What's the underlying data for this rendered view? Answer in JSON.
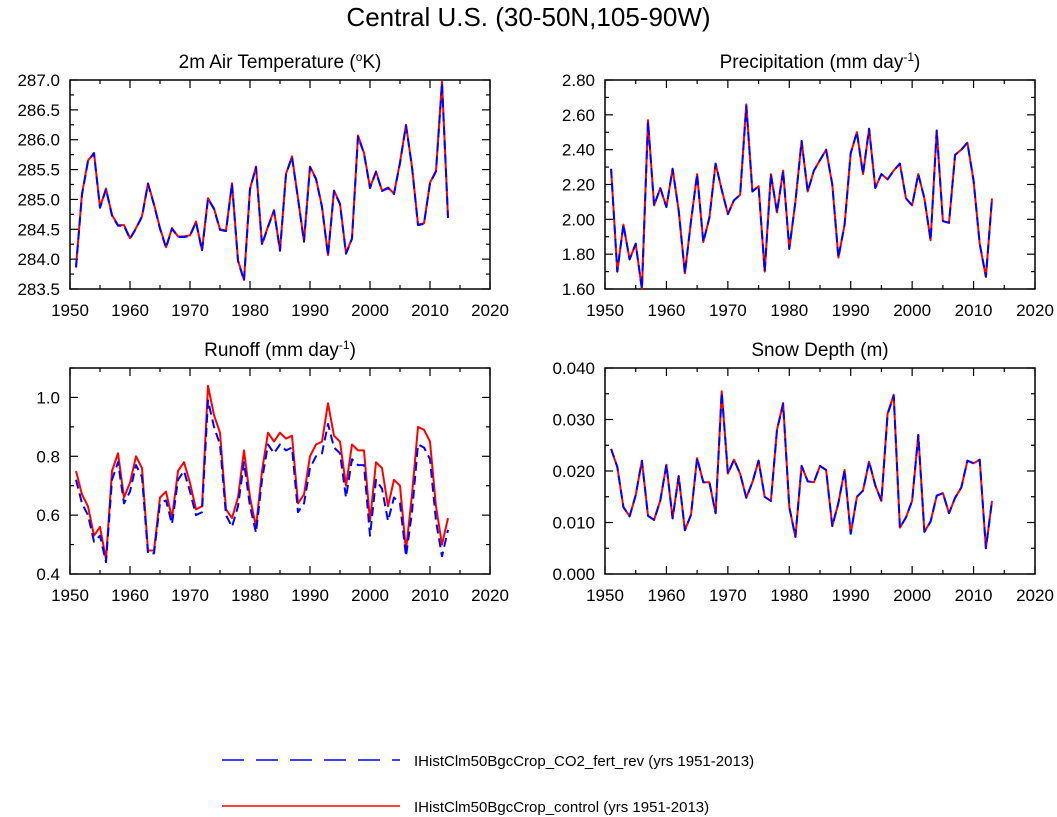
{
  "figure": {
    "title": "Central U.S. (30-50N,105-90W)"
  },
  "colors": {
    "control": "#ff0000",
    "co2": "#0000ff",
    "axis": "#000000"
  },
  "legend": {
    "items": [
      {
        "key": "co2",
        "label": "IHistClm50BgcCrop_CO2_fert_rev (yrs 1951-2013)",
        "style": "dashed",
        "color": "#0000ff"
      },
      {
        "key": "control",
        "label": "IHistClm50BgcCrop_control (yrs 1951-2013)",
        "style": "solid",
        "color": "#ff0000"
      }
    ]
  },
  "chart_data": [
    {
      "type": "line",
      "title": "2m Air Temperature (",
      "title_sup": "o",
      "title_suffix": "K)",
      "xlim": [
        1950,
        2020
      ],
      "xticks": [
        "1950",
        "1960",
        "1970",
        "1980",
        "1990",
        "2000",
        "2010",
        "2020"
      ],
      "ylim": [
        283.5,
        287.0
      ],
      "yticks": [
        "283.5",
        "284.0",
        "284.5",
        "285.0",
        "285.5",
        "286.0",
        "286.5",
        "287.0"
      ],
      "x_start": 1951,
      "series": [
        {
          "key": "control",
          "name": "IHistClm50BgcCrop_control (yrs 1951-2013)",
          "values": [
            283.88,
            285.1,
            285.65,
            285.78,
            284.87,
            285.18,
            284.74,
            284.57,
            284.57,
            284.35,
            284.52,
            284.72,
            285.27,
            284.92,
            284.52,
            284.2,
            284.52,
            284.38,
            284.38,
            284.4,
            284.63,
            284.15,
            285.02,
            284.85,
            284.5,
            284.48,
            285.27,
            283.98,
            283.65,
            285.18,
            285.55,
            284.25,
            284.55,
            284.82,
            284.15,
            285.43,
            285.72,
            285.02,
            284.3,
            285.55,
            285.35,
            284.88,
            284.07,
            285.15,
            284.93,
            284.1,
            284.35,
            286.07,
            285.78,
            285.2,
            285.47,
            285.15,
            285.2,
            285.1,
            285.62,
            286.25,
            285.55,
            284.58,
            284.6,
            285.28,
            285.48,
            286.97,
            284.7
          ]
        },
        {
          "key": "co2",
          "name": "IHistClm50BgcCrop_CO2_fert_rev (yrs 1951-2013)",
          "values": [
            283.86,
            285.08,
            285.64,
            285.77,
            284.86,
            285.17,
            284.73,
            284.56,
            284.56,
            284.34,
            284.51,
            284.71,
            285.26,
            284.91,
            284.51,
            284.19,
            284.51,
            284.37,
            284.37,
            284.39,
            284.62,
            284.14,
            285.01,
            284.84,
            284.49,
            284.47,
            285.26,
            283.97,
            283.64,
            285.17,
            285.54,
            284.24,
            284.54,
            284.81,
            284.14,
            285.42,
            285.71,
            285.01,
            284.29,
            285.54,
            285.34,
            284.87,
            284.06,
            285.14,
            284.92,
            284.09,
            284.34,
            286.05,
            285.77,
            285.19,
            285.46,
            285.14,
            285.19,
            285.09,
            285.61,
            286.24,
            285.54,
            284.57,
            284.59,
            285.27,
            285.47,
            286.95,
            284.69
          ]
        }
      ]
    },
    {
      "type": "line",
      "title": "Precipitation (mm day",
      "title_sup": "-1",
      "title_suffix": ")",
      "xlim": [
        1950,
        2020
      ],
      "xticks": [
        "1950",
        "1960",
        "1970",
        "1980",
        "1990",
        "2000",
        "2010",
        "2020"
      ],
      "ylim": [
        1.6,
        2.8
      ],
      "yticks": [
        "1.60",
        "1.80",
        "2.00",
        "2.20",
        "2.40",
        "2.60",
        "2.80"
      ],
      "x_start": 1951,
      "series": [
        {
          "key": "control",
          "name": "IHistClm50BgcCrop_control (yrs 1951-2013)",
          "values": [
            2.29,
            1.7,
            1.97,
            1.77,
            1.86,
            1.6,
            2.57,
            2.08,
            2.18,
            2.07,
            2.29,
            2.05,
            1.69,
            1.99,
            2.26,
            1.87,
            2.01,
            2.32,
            2.17,
            2.03,
            2.11,
            2.14,
            2.66,
            2.16,
            2.19,
            1.7,
            2.26,
            2.04,
            2.28,
            1.83,
            2.1,
            2.45,
            2.16,
            2.28,
            2.34,
            2.4,
            2.2,
            1.78,
            1.97,
            2.38,
            2.5,
            2.26,
            2.52,
            2.18,
            2.26,
            2.23,
            2.28,
            2.32,
            2.12,
            2.08,
            2.26,
            2.12,
            1.88,
            2.51,
            1.99,
            1.98,
            2.37,
            2.4,
            2.44,
            2.22,
            1.86,
            1.67,
            2.12
          ]
        },
        {
          "key": "co2",
          "name": "IHistClm50BgcCrop_CO2_fert_rev (yrs 1951-2013)",
          "values": [
            2.29,
            1.7,
            1.97,
            1.77,
            1.86,
            1.6,
            2.56,
            2.08,
            2.18,
            2.07,
            2.29,
            2.05,
            1.69,
            1.99,
            2.26,
            1.87,
            2.01,
            2.32,
            2.17,
            2.03,
            2.11,
            2.14,
            2.65,
            2.16,
            2.19,
            1.7,
            2.26,
            2.04,
            2.28,
            1.83,
            2.1,
            2.45,
            2.16,
            2.28,
            2.34,
            2.4,
            2.2,
            1.78,
            1.97,
            2.38,
            2.5,
            2.26,
            2.52,
            2.18,
            2.26,
            2.23,
            2.28,
            2.32,
            2.12,
            2.08,
            2.26,
            2.12,
            1.88,
            2.51,
            1.99,
            1.98,
            2.37,
            2.4,
            2.44,
            2.22,
            1.86,
            1.67,
            2.12
          ]
        }
      ]
    },
    {
      "type": "line",
      "title": "Runoff (mm day",
      "title_sup": "-1",
      "title_suffix": ")",
      "xlim": [
        1950,
        2020
      ],
      "xticks": [
        "1950",
        "1960",
        "1970",
        "1980",
        "1990",
        "2000",
        "2010",
        "2020"
      ],
      "ylim": [
        0.4,
        1.1
      ],
      "yticks": [
        "0.4",
        "0.6",
        "0.8",
        "1.0"
      ],
      "ytick_values": [
        0.4,
        0.6,
        0.8,
        1.0
      ],
      "x_start": 1951,
      "series": [
        {
          "key": "control",
          "name": "IHistClm50BgcCrop_control (yrs 1951-2013)",
          "values": [
            0.75,
            0.67,
            0.63,
            0.53,
            0.56,
            0.45,
            0.75,
            0.81,
            0.66,
            0.71,
            0.8,
            0.76,
            0.48,
            0.48,
            0.66,
            0.68,
            0.59,
            0.75,
            0.78,
            0.71,
            0.62,
            0.63,
            1.04,
            0.94,
            0.88,
            0.62,
            0.59,
            0.66,
            0.82,
            0.66,
            0.56,
            0.75,
            0.88,
            0.85,
            0.88,
            0.86,
            0.87,
            0.64,
            0.67,
            0.8,
            0.84,
            0.85,
            0.98,
            0.87,
            0.85,
            0.7,
            0.84,
            0.82,
            0.82,
            0.58,
            0.78,
            0.76,
            0.63,
            0.72,
            0.7,
            0.48,
            0.67,
            0.9,
            0.89,
            0.85,
            0.63,
            0.5,
            0.59
          ]
        },
        {
          "key": "co2",
          "name": "IHistClm50BgcCrop_CO2_fert_rev (yrs 1951-2013)",
          "values": [
            0.72,
            0.64,
            0.6,
            0.51,
            0.53,
            0.44,
            0.72,
            0.78,
            0.64,
            0.68,
            0.77,
            0.73,
            0.47,
            0.47,
            0.64,
            0.65,
            0.57,
            0.72,
            0.75,
            0.68,
            0.6,
            0.61,
            0.99,
            0.9,
            0.84,
            0.6,
            0.56,
            0.63,
            0.78,
            0.63,
            0.54,
            0.72,
            0.84,
            0.81,
            0.84,
            0.82,
            0.83,
            0.61,
            0.64,
            0.76,
            0.8,
            0.81,
            0.91,
            0.83,
            0.81,
            0.66,
            0.79,
            0.77,
            0.77,
            0.53,
            0.72,
            0.69,
            0.58,
            0.66,
            0.64,
            0.46,
            0.61,
            0.84,
            0.83,
            0.79,
            0.58,
            0.46,
            0.55
          ]
        }
      ]
    },
    {
      "type": "line",
      "title": "Snow Depth (m)",
      "title_sup": "",
      "title_suffix": "",
      "xlim": [
        1950,
        2020
      ],
      "xticks": [
        "1950",
        "1960",
        "1970",
        "1980",
        "1990",
        "2000",
        "2010",
        "2020"
      ],
      "ylim": [
        0.0,
        0.04
      ],
      "yticks": [
        "0.000",
        "0.010",
        "0.020",
        "0.030",
        "0.040"
      ],
      "x_start": 1951,
      "series": [
        {
          "key": "control",
          "name": "IHistClm50BgcCrop_control (yrs 1951-2013)",
          "values": [
            0.0243,
            0.0208,
            0.013,
            0.0112,
            0.0153,
            0.022,
            0.0113,
            0.0105,
            0.0143,
            0.0212,
            0.0108,
            0.019,
            0.0085,
            0.0115,
            0.0225,
            0.0178,
            0.0178,
            0.0118,
            0.0355,
            0.0195,
            0.0222,
            0.0195,
            0.0148,
            0.0178,
            0.022,
            0.015,
            0.0142,
            0.028,
            0.0332,
            0.013,
            0.0072,
            0.021,
            0.018,
            0.0178,
            0.021,
            0.0202,
            0.0093,
            0.0138,
            0.0202,
            0.0078,
            0.015,
            0.0162,
            0.0218,
            0.0172,
            0.0142,
            0.0312,
            0.0348,
            0.009,
            0.011,
            0.0142,
            0.027,
            0.0082,
            0.0102,
            0.0152,
            0.0157,
            0.0118,
            0.0148,
            0.0168,
            0.022,
            0.0215,
            0.0222,
            0.005,
            0.0142
          ]
        },
        {
          "key": "co2",
          "name": "IHistClm50BgcCrop_CO2_fert_rev (yrs 1951-2013)",
          "values": [
            0.0243,
            0.0208,
            0.013,
            0.0112,
            0.0153,
            0.022,
            0.0113,
            0.0105,
            0.0143,
            0.0212,
            0.0108,
            0.019,
            0.0085,
            0.0115,
            0.0225,
            0.0178,
            0.0178,
            0.0118,
            0.0353,
            0.0195,
            0.0222,
            0.0195,
            0.0148,
            0.0178,
            0.022,
            0.015,
            0.0142,
            0.028,
            0.033,
            0.013,
            0.0072,
            0.021,
            0.018,
            0.0178,
            0.021,
            0.0202,
            0.0093,
            0.0138,
            0.0202,
            0.0078,
            0.015,
            0.0162,
            0.0218,
            0.0172,
            0.0142,
            0.031,
            0.0346,
            0.009,
            0.011,
            0.0142,
            0.027,
            0.0082,
            0.0102,
            0.0152,
            0.0157,
            0.0118,
            0.0148,
            0.0168,
            0.022,
            0.0215,
            0.0222,
            0.005,
            0.0142
          ]
        }
      ]
    }
  ]
}
